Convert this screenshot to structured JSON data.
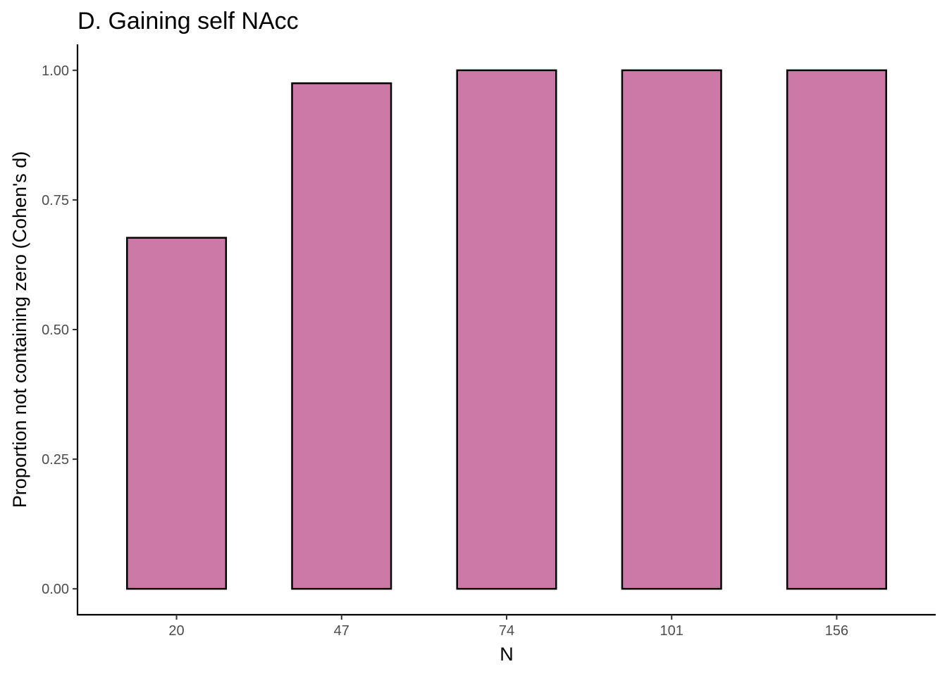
{
  "chart_data": {
    "type": "bar",
    "title": "D. Gaining self NAcc",
    "xlabel": "N",
    "ylabel": "Proportion not containing zero (Cohen's d)",
    "categories": [
      "20",
      "47",
      "74",
      "101",
      "156"
    ],
    "values": [
      0.677,
      0.975,
      1.0,
      1.0,
      1.0
    ],
    "ylim": [
      -0.05,
      1.05
    ],
    "yticks": [
      0,
      0.25,
      0.5,
      0.75,
      1.0
    ],
    "ytick_labels": [
      "0.00",
      "0.25",
      "0.50",
      "0.75",
      "1.00"
    ],
    "bar_color": "#cc79a7",
    "bar_edge_color": "#000000",
    "grid": false,
    "legend": "none"
  }
}
